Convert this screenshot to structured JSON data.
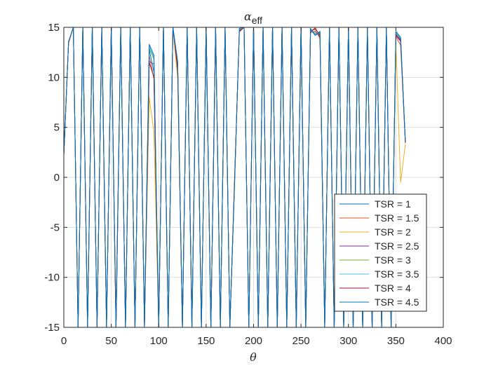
{
  "chart_data": {
    "type": "line",
    "title_greek": "α",
    "title_sub": "eff",
    "xlabel": "θ",
    "ylabel": "",
    "xlim": [
      0,
      400
    ],
    "ylim": [
      -15,
      15
    ],
    "xticks": [
      0,
      50,
      100,
      150,
      200,
      250,
      300,
      350,
      400
    ],
    "yticks": [
      -15,
      -10,
      -5,
      0,
      5,
      10,
      15
    ],
    "xtick_labels": [
      "0",
      "50",
      "100",
      "150",
      "200",
      "250",
      "300",
      "350",
      "400"
    ],
    "ytick_labels": [
      "-15",
      "-10",
      "-5",
      "0",
      "5",
      "10",
      "15"
    ],
    "grid": true,
    "legend_position": "bottom-right",
    "colors": {
      "axis": "#262626",
      "grid": "#dfdfdf"
    },
    "x": [
      0,
      5,
      10,
      15,
      20,
      25,
      30,
      35,
      40,
      45,
      50,
      55,
      60,
      65,
      70,
      75,
      80,
      85,
      90,
      95,
      100,
      105,
      110,
      115,
      120,
      125,
      130,
      135,
      140,
      145,
      150,
      155,
      160,
      165,
      170,
      175,
      180,
      185,
      190,
      195,
      200,
      205,
      210,
      215,
      220,
      225,
      230,
      235,
      240,
      245,
      250,
      255,
      260,
      265,
      270,
      275,
      280,
      285,
      290,
      295,
      300,
      305,
      310,
      315,
      320,
      325,
      330,
      335,
      340,
      345,
      350,
      355,
      360
    ],
    "series": [
      {
        "name": "TSR = 1",
        "color": "#0072BD",
        "values": [
          2.3,
          13.5,
          15,
          -15,
          15,
          -15,
          15,
          -15,
          15,
          -15,
          15,
          -15,
          15,
          -15,
          15,
          -15,
          15,
          -15,
          12.8,
          10.5,
          -15,
          15,
          -15,
          15,
          11.2,
          -15,
          15,
          -15,
          15,
          -15,
          15,
          -15,
          15,
          -15,
          15,
          -15,
          -0.5,
          14.8,
          15,
          -15,
          15,
          -15,
          15,
          -15,
          15,
          -15,
          15,
          -15,
          15,
          -15,
          15,
          -15,
          14.8,
          14.2,
          14.5,
          -15,
          15,
          -15,
          15,
          -15,
          15,
          -15,
          15,
          -15,
          15,
          -15,
          15,
          -15,
          15,
          -15,
          14.5,
          13.8,
          3.5
        ]
      },
      {
        "name": "TSR = 1.5",
        "color": "#D95319",
        "values": [
          2.3,
          13.5,
          15,
          -15,
          15,
          -15,
          15,
          -15,
          15,
          -15,
          15,
          -14,
          15,
          -15,
          15,
          -15,
          15,
          -14.5,
          12.2,
          9.8,
          -14.8,
          15,
          -15,
          15,
          10.5,
          -15,
          15,
          -15,
          15,
          -15,
          15,
          -15,
          15,
          -15,
          15,
          -15,
          -0.3,
          14.6,
          15,
          -15,
          15,
          -15,
          15,
          -15,
          15,
          -15,
          15,
          -15,
          15,
          -15,
          15,
          -15,
          14.6,
          14.8,
          14.1,
          -15,
          15,
          -15,
          15,
          -15,
          15,
          -15,
          15,
          -15,
          15,
          -15,
          15,
          -15,
          15,
          -15,
          14.1,
          13.2,
          3.4
        ]
      },
      {
        "name": "TSR = 2",
        "color": "#EDB120",
        "values": [
          2.3,
          13.4,
          15,
          -15,
          15,
          -15,
          15,
          -15,
          15,
          -15,
          15,
          -15,
          15,
          -15,
          15,
          -15,
          15,
          -15,
          8.0,
          4.5,
          -15,
          15,
          -15,
          15,
          9.8,
          -15,
          15,
          -15,
          15,
          -15,
          15,
          -15,
          15,
          -15,
          15,
          -15,
          0.2,
          14.5,
          15,
          -15,
          15,
          -15,
          15,
          -15,
          15,
          -15,
          15,
          -15,
          15,
          -15,
          15,
          -15,
          14.4,
          15,
          13.8,
          -15,
          15,
          -15,
          15,
          -15,
          15,
          -15,
          15,
          -15,
          15,
          -15,
          15,
          -15,
          15,
          -15,
          13.5,
          -0.5,
          3.3
        ]
      },
      {
        "name": "TSR = 2.5",
        "color": "#7E2F8E",
        "values": [
          2.3,
          13.5,
          15,
          -15,
          15,
          -15,
          15,
          -15,
          15,
          -15,
          15,
          -15,
          15,
          -15,
          15,
          -15,
          15,
          -14.8,
          11.6,
          11.3,
          -15,
          15,
          -15,
          15,
          11.0,
          -15,
          15,
          -15,
          15,
          -15,
          15,
          -15,
          15,
          -15,
          15,
          -15,
          -0.4,
          14.7,
          15,
          -15,
          15,
          -15,
          15,
          -15,
          15,
          -15,
          15,
          -15,
          15,
          -15,
          15,
          -15,
          14.5,
          14.6,
          14.0,
          -15,
          15,
          -15,
          15,
          -15,
          15,
          -15,
          15,
          -15,
          15,
          -15,
          15,
          -15,
          15,
          -15,
          14.2,
          13.6,
          3.5
        ]
      },
      {
        "name": "TSR = 3",
        "color": "#77AC30",
        "values": [
          2.3,
          13.5,
          15,
          -15,
          15,
          -15,
          15,
          -15,
          15,
          -15,
          15,
          -15,
          15,
          -15,
          15,
          -15,
          15,
          -14.6,
          12.9,
          11.8,
          -15,
          15,
          -15,
          15,
          11.4,
          -15,
          15,
          -15,
          15,
          -15,
          15,
          -15,
          15,
          -15,
          15,
          -15,
          -0.6,
          14.8,
          15,
          -15,
          15,
          -15,
          15,
          -15,
          15,
          -15,
          15,
          -15,
          15,
          -15,
          15,
          -15,
          14.7,
          14.4,
          14.3,
          -15,
          15,
          -15,
          15,
          -15,
          15,
          -15,
          15,
          -15,
          15,
          -15,
          15,
          -15,
          15,
          -15,
          14.4,
          13.9,
          3.5
        ]
      },
      {
        "name": "TSR = 3.5",
        "color": "#4DBEEE",
        "values": [
          2.3,
          13.5,
          15,
          -15,
          15,
          -15,
          15,
          -15,
          15,
          -15,
          15,
          -15,
          15,
          -15,
          15,
          -15,
          15,
          -15,
          13.1,
          12.0,
          -15,
          15,
          -15,
          15,
          11.5,
          -15,
          15,
          -15,
          15,
          -15,
          15,
          -15,
          15,
          -15,
          15,
          -15,
          -0.5,
          14.8,
          15,
          -15,
          15,
          -15,
          15,
          -15,
          15,
          -15,
          15,
          -15,
          15,
          -15,
          15,
          -15,
          14.8,
          14.3,
          14.4,
          -15,
          15,
          -15,
          15,
          -15,
          15,
          -15,
          15,
          -15,
          15,
          -15,
          15,
          -15,
          15,
          -15,
          14.5,
          13.9,
          3.5
        ]
      },
      {
        "name": "TSR = 4",
        "color": "#A2142F",
        "values": [
          2.3,
          13.5,
          15,
          -15,
          15,
          -15,
          15,
          -15,
          15,
          -15,
          15,
          -15,
          15,
          -15,
          15,
          -15,
          15,
          -15,
          11.5,
          10.0,
          -15,
          15,
          -15,
          15,
          10.8,
          -15,
          15,
          -15,
          15,
          -15,
          15,
          -15,
          15,
          -15,
          15,
          -15,
          -0.2,
          14.6,
          15,
          -15,
          15,
          -15,
          15,
          -15,
          15,
          -15,
          15,
          -15,
          15,
          -15,
          15,
          -15,
          14.6,
          14.9,
          14.2,
          -15,
          15,
          -15,
          15,
          -15,
          15,
          -15,
          15,
          -15,
          15,
          -15,
          15,
          -15,
          15,
          -15,
          14.3,
          13.7,
          3.5
        ]
      },
      {
        "name": "TSR = 4.5",
        "color": "#0072BD",
        "values": [
          2.3,
          13.6,
          15,
          -15,
          15,
          -15,
          15,
          -15,
          15,
          -15,
          15,
          -15,
          15,
          -15,
          15,
          -15,
          15,
          -15,
          13.3,
          12.2,
          -15,
          15,
          -15,
          15,
          11.6,
          -15,
          15,
          -15,
          15,
          -15,
          15,
          -15,
          15,
          -15,
          15,
          -15,
          -0.6,
          14.9,
          15,
          -15,
          15,
          -15,
          15,
          -15,
          15,
          -15,
          15,
          -15,
          15,
          -15,
          15,
          -15,
          14.9,
          14.2,
          14.6,
          -15,
          15,
          -15,
          15,
          -15,
          15,
          -15,
          15,
          -15,
          15,
          -15,
          15,
          -15,
          15,
          -15,
          14.6,
          14.0,
          3.6
        ]
      }
    ]
  }
}
